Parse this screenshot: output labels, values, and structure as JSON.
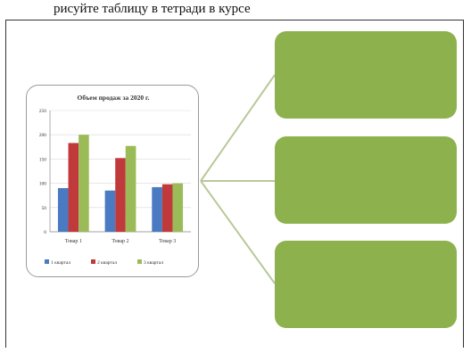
{
  "header": {
    "caption": "рисуйте таблицу в тетради в курсе"
  },
  "colors": {
    "green_box": "#8db14c",
    "connector": "#b7c99a",
    "series": [
      "#4a7ac2",
      "#c0393b",
      "#9bbb59"
    ]
  },
  "chart_data": {
    "type": "bar",
    "title": "Объем продаж за 2020 г.",
    "categories": [
      "Товар 1",
      "Товар 2",
      "Товар 3"
    ],
    "series": [
      {
        "name": "1 квартал",
        "values": [
          90,
          85,
          92
        ]
      },
      {
        "name": "2 квартал",
        "values": [
          183,
          152,
          98
        ]
      },
      {
        "name": "3 квартал",
        "values": [
          200,
          177,
          100
        ]
      }
    ],
    "ylim": [
      0,
      250
    ],
    "yticks": [
      "0",
      "50",
      "100",
      "150",
      "200",
      "250"
    ],
    "grid": true,
    "legend": "bottom"
  },
  "boxes": [
    {
      "label": ""
    },
    {
      "label": ""
    },
    {
      "label": ""
    }
  ]
}
